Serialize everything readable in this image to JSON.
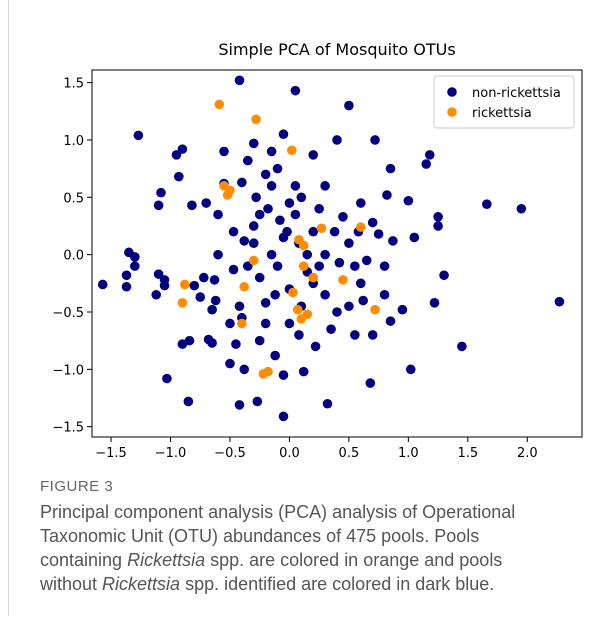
{
  "chart_data": {
    "type": "scatter",
    "title": "Simple PCA of Mosquito OTUs",
    "xlim": [
      -1.66,
      2.46
    ],
    "ylim": [
      -1.59,
      1.61
    ],
    "xticks": [
      {
        "value": -1.5,
        "label": "−1.5"
      },
      {
        "value": -1.0,
        "label": "−1.0"
      },
      {
        "value": -0.5,
        "label": "−0.5"
      },
      {
        "value": 0.0,
        "label": "0.0"
      },
      0.5,
      {
        "value": 1.0,
        "label": "1.0"
      },
      1.5,
      {
        "value": 2.0,
        "label": "2.0"
      }
    ],
    "yticks": [
      {
        "value": -1.5,
        "label": "−1.5"
      },
      {
        "value": -1.0,
        "label": "−1.0"
      },
      {
        "value": -0.5,
        "label": "−0.5"
      },
      {
        "value": 0.0,
        "label": "0.0"
      },
      0.5,
      {
        "value": 1.0,
        "label": "1.0"
      },
      1.5
    ],
    "grid": false,
    "legend": "upper right",
    "series": [
      {
        "name": "non-rickettsia",
        "color": "#000080",
        "x": [
          -1.57,
          -1.37,
          -1.37,
          -1.35,
          -1.3,
          -1.3,
          -1.27,
          -1.1,
          -1.1,
          -1.08,
          -1.05,
          -1.05,
          -1.12,
          -0.95,
          -0.9,
          -0.93,
          -0.82,
          -0.9,
          -0.84,
          -1.03,
          -0.85,
          -0.8,
          -0.75,
          -0.7,
          -0.72,
          -0.63,
          -0.65,
          -0.62,
          -0.68,
          -0.65,
          -0.6,
          -0.55,
          -0.55,
          -0.5,
          -0.47,
          -0.45,
          -0.47,
          -0.42,
          -0.4,
          -0.38,
          -0.42,
          -0.4,
          -0.42,
          -0.38,
          -0.35,
          -0.3,
          -0.28,
          -0.25,
          -0.3,
          -0.3,
          -0.25,
          -0.27,
          -0.25,
          -0.2,
          -0.2,
          -0.2,
          -0.15,
          -0.15,
          -0.15,
          -0.1,
          -0.12,
          -0.12,
          -0.05,
          -0.08,
          -0.05,
          -0.02,
          0.0,
          0.0,
          -0.05,
          0.05,
          0.05,
          0.05,
          0.08,
          0.1,
          0.12,
          0.15,
          0.2,
          0.2,
          0.22,
          0.25,
          0.3,
          0.3,
          0.3,
          0.32,
          0.35,
          0.4,
          0.42,
          0.45,
          0.5,
          0.5,
          0.5,
          0.55,
          0.55,
          0.58,
          0.6,
          0.62,
          0.65,
          0.68,
          0.7,
          0.7,
          0.72,
          0.75,
          0.8,
          0.8,
          0.82,
          0.85,
          0.87,
          0.85,
          0.95,
          1.0,
          1.02,
          1.05,
          1.15,
          1.18,
          1.22,
          1.25,
          1.25,
          1.3,
          1.45,
          1.66,
          1.95,
          2.27,
          0.1,
          -0.05,
          0.15,
          0.25,
          -0.18,
          0.38,
          0.08,
          -0.6,
          0.6,
          -0.35,
          0.2,
          -0.1,
          0.4,
          -0.5,
          0.0
        ],
        "values": [
          -0.26,
          -0.18,
          -0.28,
          0.02,
          -0.02,
          -0.1,
          1.04,
          -0.17,
          0.43,
          0.54,
          -0.22,
          -0.27,
          -0.35,
          0.87,
          0.92,
          0.68,
          0.43,
          -0.78,
          -0.75,
          -1.08,
          -1.28,
          -0.27,
          -0.37,
          0.45,
          -0.2,
          -0.22,
          -0.48,
          -0.4,
          -0.74,
          -0.77,
          0.35,
          0.62,
          0.9,
          -0.95,
          -0.13,
          -0.78,
          0.2,
          1.52,
          0.63,
          0.12,
          -0.45,
          -0.55,
          -1.31,
          -1.0,
          0.82,
          0.97,
          0.5,
          0.35,
          0.25,
          0.1,
          -0.2,
          -1.28,
          -0.75,
          -0.6,
          -0.42,
          0.7,
          0.9,
          0.6,
          0.0,
          -0.1,
          -0.35,
          -0.88,
          -1.05,
          0.3,
          1.05,
          0.2,
          -0.3,
          -0.6,
          -1.41,
          1.43,
          0.6,
          0.35,
          0.1,
          -0.45,
          -1.02,
          0.0,
          0.87,
          -0.25,
          -0.8,
          0.4,
          0.0,
          -0.35,
          0.6,
          -1.3,
          -0.65,
          1.0,
          -0.07,
          0.33,
          1.3,
          -0.45,
          0.1,
          -0.1,
          -0.7,
          0.2,
          0.45,
          -0.4,
          -0.05,
          -1.12,
          0.28,
          -0.7,
          1.0,
          0.18,
          -0.1,
          -0.35,
          0.52,
          0.75,
          0.12,
          -0.58,
          -0.48,
          0.47,
          -1.0,
          0.15,
          0.79,
          0.87,
          -0.42,
          0.33,
          0.25,
          -0.18,
          -0.8,
          0.44,
          0.4,
          -0.41,
          0.5,
          0.15,
          -0.15,
          -0.1,
          0.4,
          0.2,
          -0.7,
          0.0,
          -0.25,
          -0.1,
          0.2,
          0.75,
          -0.5,
          -0.6,
          0.45
        ]
      },
      {
        "name": "rickettsia",
        "color": "#ff8c00",
        "x": [
          -0.59,
          -0.28,
          0.02,
          -0.55,
          -0.5,
          -0.52,
          -0.3,
          -0.38,
          -0.4,
          -0.9,
          -0.88,
          -0.22,
          -0.18,
          0.08,
          0.12,
          0.27,
          0.6,
          0.12,
          0.2,
          0.03,
          0.07,
          0.1,
          0.15,
          0.45,
          0.72
        ],
        "values": [
          1.31,
          1.18,
          0.91,
          0.6,
          0.56,
          0.52,
          -0.05,
          -0.28,
          -0.6,
          -0.42,
          -0.26,
          -1.04,
          -1.02,
          0.13,
          0.08,
          0.23,
          0.24,
          -0.1,
          -0.2,
          -0.33,
          -0.48,
          -0.56,
          -0.52,
          -0.22,
          -0.48
        ]
      }
    ]
  },
  "figure": {
    "label": "FIGURE 3",
    "caption": [
      "Principal component analysis (PCA) analysis of Operational Taxonomic Unit (OTU) abundances of 475 pools. Pools containing ",
      "Rickettsia",
      " spp. are colored in orange and pools without ",
      "Rickettsia",
      " spp. identified are colored in dark blue."
    ]
  }
}
